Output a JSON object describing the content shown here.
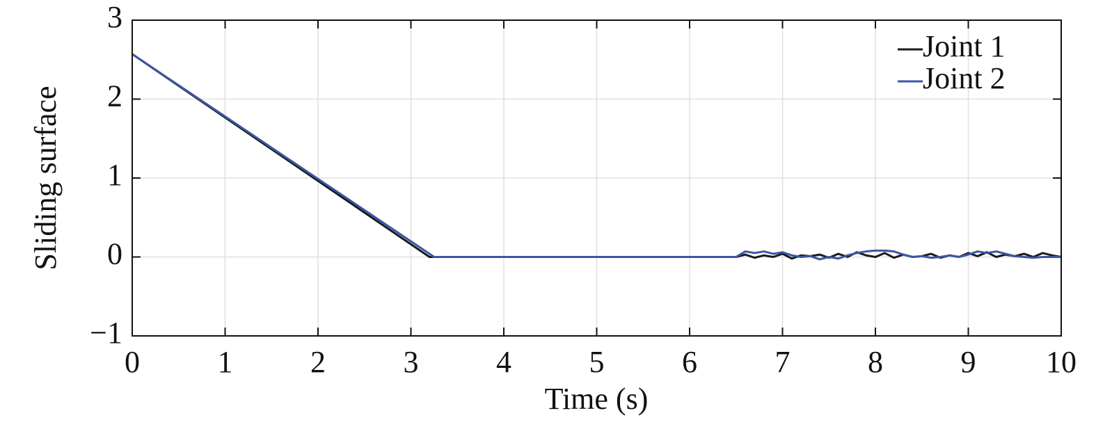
{
  "chart_data": {
    "type": "line",
    "xlabel": "Time (s)",
    "ylabel": "Sliding surface",
    "x": [
      0,
      3.2,
      3.25,
      4,
      5,
      6,
      6.5,
      6.6,
      6.7,
      6.8,
      6.9,
      7.0,
      7.1,
      7.2,
      7.3,
      7.4,
      7.5,
      7.6,
      7.7,
      7.8,
      7.9,
      8.0,
      8.1,
      8.2,
      8.3,
      8.4,
      8.5,
      8.6,
      8.7,
      8.8,
      8.9,
      9.0,
      9.1,
      9.2,
      9.3,
      9.4,
      9.5,
      9.6,
      9.7,
      9.8,
      9.9,
      10.0
    ],
    "series": [
      {
        "name": "Joint 1",
        "color": "#1a1a1a",
        "values": [
          2.57,
          0,
          0,
          0,
          0,
          0,
          0,
          0.03,
          -0.01,
          0.02,
          0.0,
          0.04,
          -0.02,
          0.02,
          0.01,
          0.03,
          -0.01,
          0.04,
          0.0,
          0.06,
          0.02,
          0.0,
          0.05,
          -0.01,
          0.03,
          0.0,
          0.01,
          0.04,
          -0.01,
          0.02,
          0.0,
          0.05,
          0.01,
          0.06,
          0.0,
          0.03,
          0.01,
          0.04,
          0.0,
          0.05,
          0.02,
          0.0
        ]
      },
      {
        "name": "Joint 2",
        "color": "#3a56a6",
        "values": [
          2.57,
          0.04,
          0,
          0,
          0,
          0,
          0,
          0.07,
          0.05,
          0.07,
          0.04,
          0.06,
          0.02,
          0.0,
          0.01,
          -0.03,
          0.0,
          -0.02,
          0.02,
          0.05,
          0.07,
          0.08,
          0.08,
          0.07,
          0.03,
          0.0,
          0.01,
          -0.01,
          0.0,
          0.02,
          0.0,
          0.03,
          0.07,
          0.05,
          0.07,
          0.04,
          0.01,
          0.0,
          -0.01,
          0.0,
          0.0,
          0.0
        ]
      }
    ],
    "xlim": [
      0,
      10
    ],
    "xticks": [
      0,
      1,
      2,
      3,
      4,
      5,
      6,
      7,
      8,
      9,
      10
    ],
    "ylim": [
      -1,
      3
    ],
    "yticks": [
      {
        "value": -1,
        "label": "−1"
      },
      0,
      1,
      2,
      3
    ],
    "grid": true,
    "legend": "upper right"
  }
}
